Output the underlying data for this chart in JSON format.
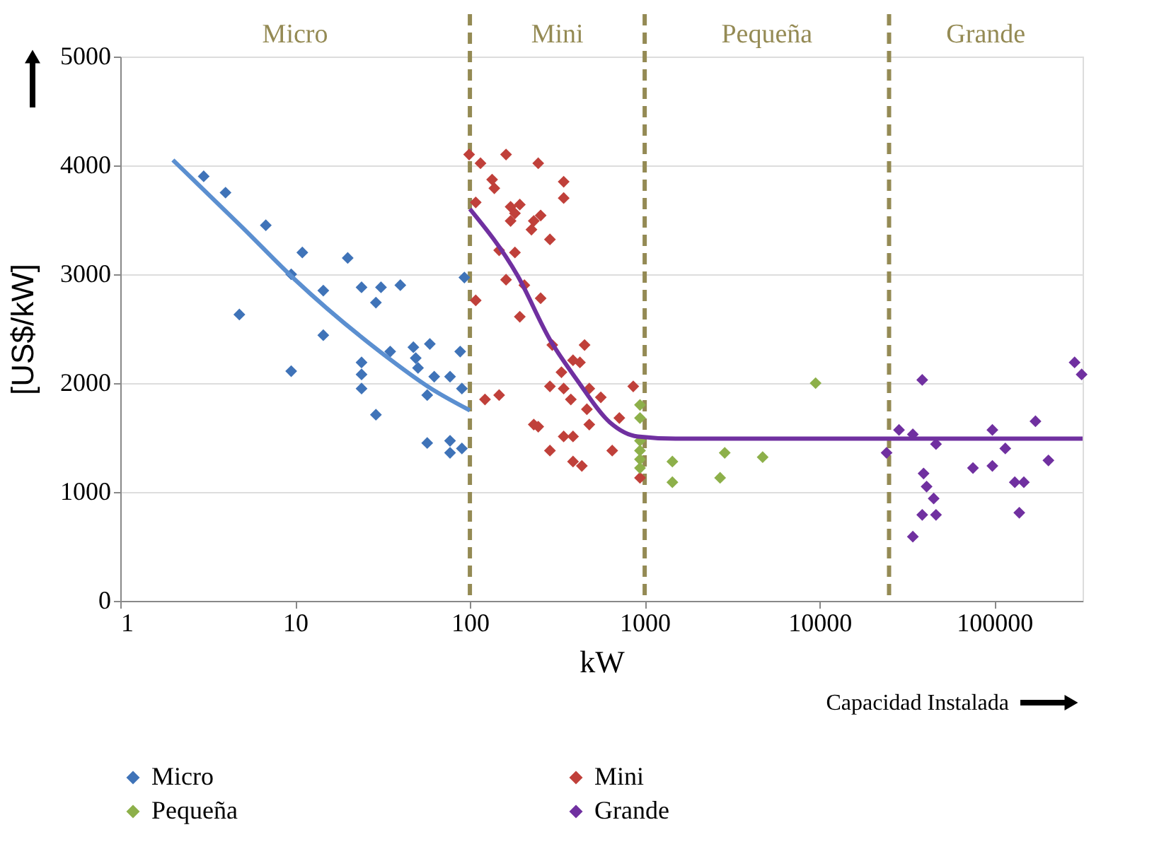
{
  "chart_data": {
    "type": "scatter",
    "ylabel": "[US$/kW]",
    "xlabel": "kW",
    "annotations": [
      "Micro",
      "Mini",
      "Pequeña",
      "Grande",
      "Capacidad Instalada"
    ],
    "log": "x",
    "xlim": [
      1,
      320000
    ],
    "xticks": [
      1,
      10,
      100,
      1000,
      10000,
      100000
    ],
    "ylim": [
      0,
      5000
    ],
    "yticks": [
      0,
      1000,
      2000,
      3000,
      4000,
      5000
    ],
    "grid": "y",
    "legend": "bottom",
    "marker": "diamond",
    "ref_lines": [
      {
        "axis": "x",
        "value": 100,
        "color": "#948a54",
        "line_style": "dashed"
      },
      {
        "axis": "x",
        "value": 1000,
        "color": "#948a54",
        "line_style": "dashed"
      },
      {
        "axis": "x",
        "value": 25000,
        "color": "#948a54",
        "line_style": "dashed"
      }
    ],
    "series": [
      {
        "name": "Micro",
        "color": "#3f73b8",
        "x": [
          3,
          4,
          6.8,
          11,
          20,
          9.5,
          4.8,
          14.5,
          24,
          31,
          40,
          29,
          93,
          14.5,
          9.5,
          24,
          24,
          24,
          35,
          47.5,
          49,
          50.5,
          59,
          62.5,
          77,
          90,
          88,
          57,
          29,
          57,
          77,
          77,
          90
        ],
        "values": [
          3900,
          3750,
          3450,
          3200,
          3150,
          3000,
          2630,
          2850,
          2880,
          2880,
          2900,
          2740,
          2970,
          2440,
          2110,
          2190,
          2080,
          1950,
          2290,
          2330,
          2230,
          2140,
          2360,
          2060,
          2060,
          1950,
          2290,
          1890,
          1710,
          1450,
          1470,
          1360,
          1400
        ]
      },
      {
        "name": "Mini",
        "color": "#c0403a",
        "x": [
          99,
          115,
          161,
          246,
          134,
          138,
          344,
          344,
          108,
          171,
          193,
          171,
          181,
          232,
          254,
          225,
          287,
          147,
          181,
          108,
          161,
          205,
          254,
          193,
          296,
          453,
          389,
          426,
          334,
          287,
          344,
          482,
          561,
          378,
          467,
          716,
          860,
          122,
          147,
          232,
          246,
          344,
          389,
          287,
          482,
          652,
          389,
          437,
          940
        ],
        "values": [
          4100,
          4020,
          4100,
          4020,
          3870,
          3790,
          3850,
          3700,
          3660,
          3620,
          3640,
          3490,
          3560,
          3490,
          3540,
          3410,
          3320,
          3220,
          3200,
          2760,
          2950,
          2900,
          2780,
          2610,
          2350,
          2350,
          2210,
          2190,
          2100,
          1970,
          1950,
          1950,
          1870,
          1850,
          1760,
          1680,
          1970,
          1850,
          1890,
          1620,
          1600,
          1510,
          1510,
          1380,
          1620,
          1380,
          1280,
          1240,
          1130
        ]
      },
      {
        "name": "Pequeña",
        "color": "#8db04a",
        "x": [
          940,
          940,
          940,
          940,
          940,
          940,
          1440,
          1440,
          2870,
          2700,
          4730,
          9500
        ],
        "values": [
          1800,
          1680,
          1470,
          1380,
          1300,
          1220,
          1280,
          1090,
          1360,
          1130,
          1320,
          2000
        ]
      },
      {
        "name": "Grande",
        "color": "#7030a0",
        "x": [
          24200,
          38700,
          28500,
          34200,
          46400,
          39400,
          41000,
          45000,
          46400,
          38700,
          34200,
          75500,
          97500,
          97500,
          115600,
          131000,
          147600,
          139000,
          172000,
          204000,
          288000,
          316000
        ],
        "values": [
          1360,
          2030,
          1570,
          1530,
          1440,
          1170,
          1050,
          940,
          790,
          790,
          590,
          1220,
          1240,
          1570,
          1400,
          1090,
          1090,
          810,
          1650,
          1290,
          2190,
          2080
        ]
      },
      {
        "type": "line",
        "color": "#5b8fd0",
        "marker": "none",
        "x": [
          2,
          5,
          10,
          30,
          60,
          100
        ],
        "values": [
          4050,
          3430,
          2950,
          2300,
          1950,
          1750
        ]
      },
      {
        "type": "line",
        "color": "#7030a0",
        "marker": "none",
        "x": [
          100,
          187,
          287,
          414,
          632,
          912,
          1500,
          320000
        ],
        "values": [
          3600,
          2990,
          2400,
          2020,
          1640,
          1510,
          1490,
          1490
        ]
      }
    ]
  }
}
